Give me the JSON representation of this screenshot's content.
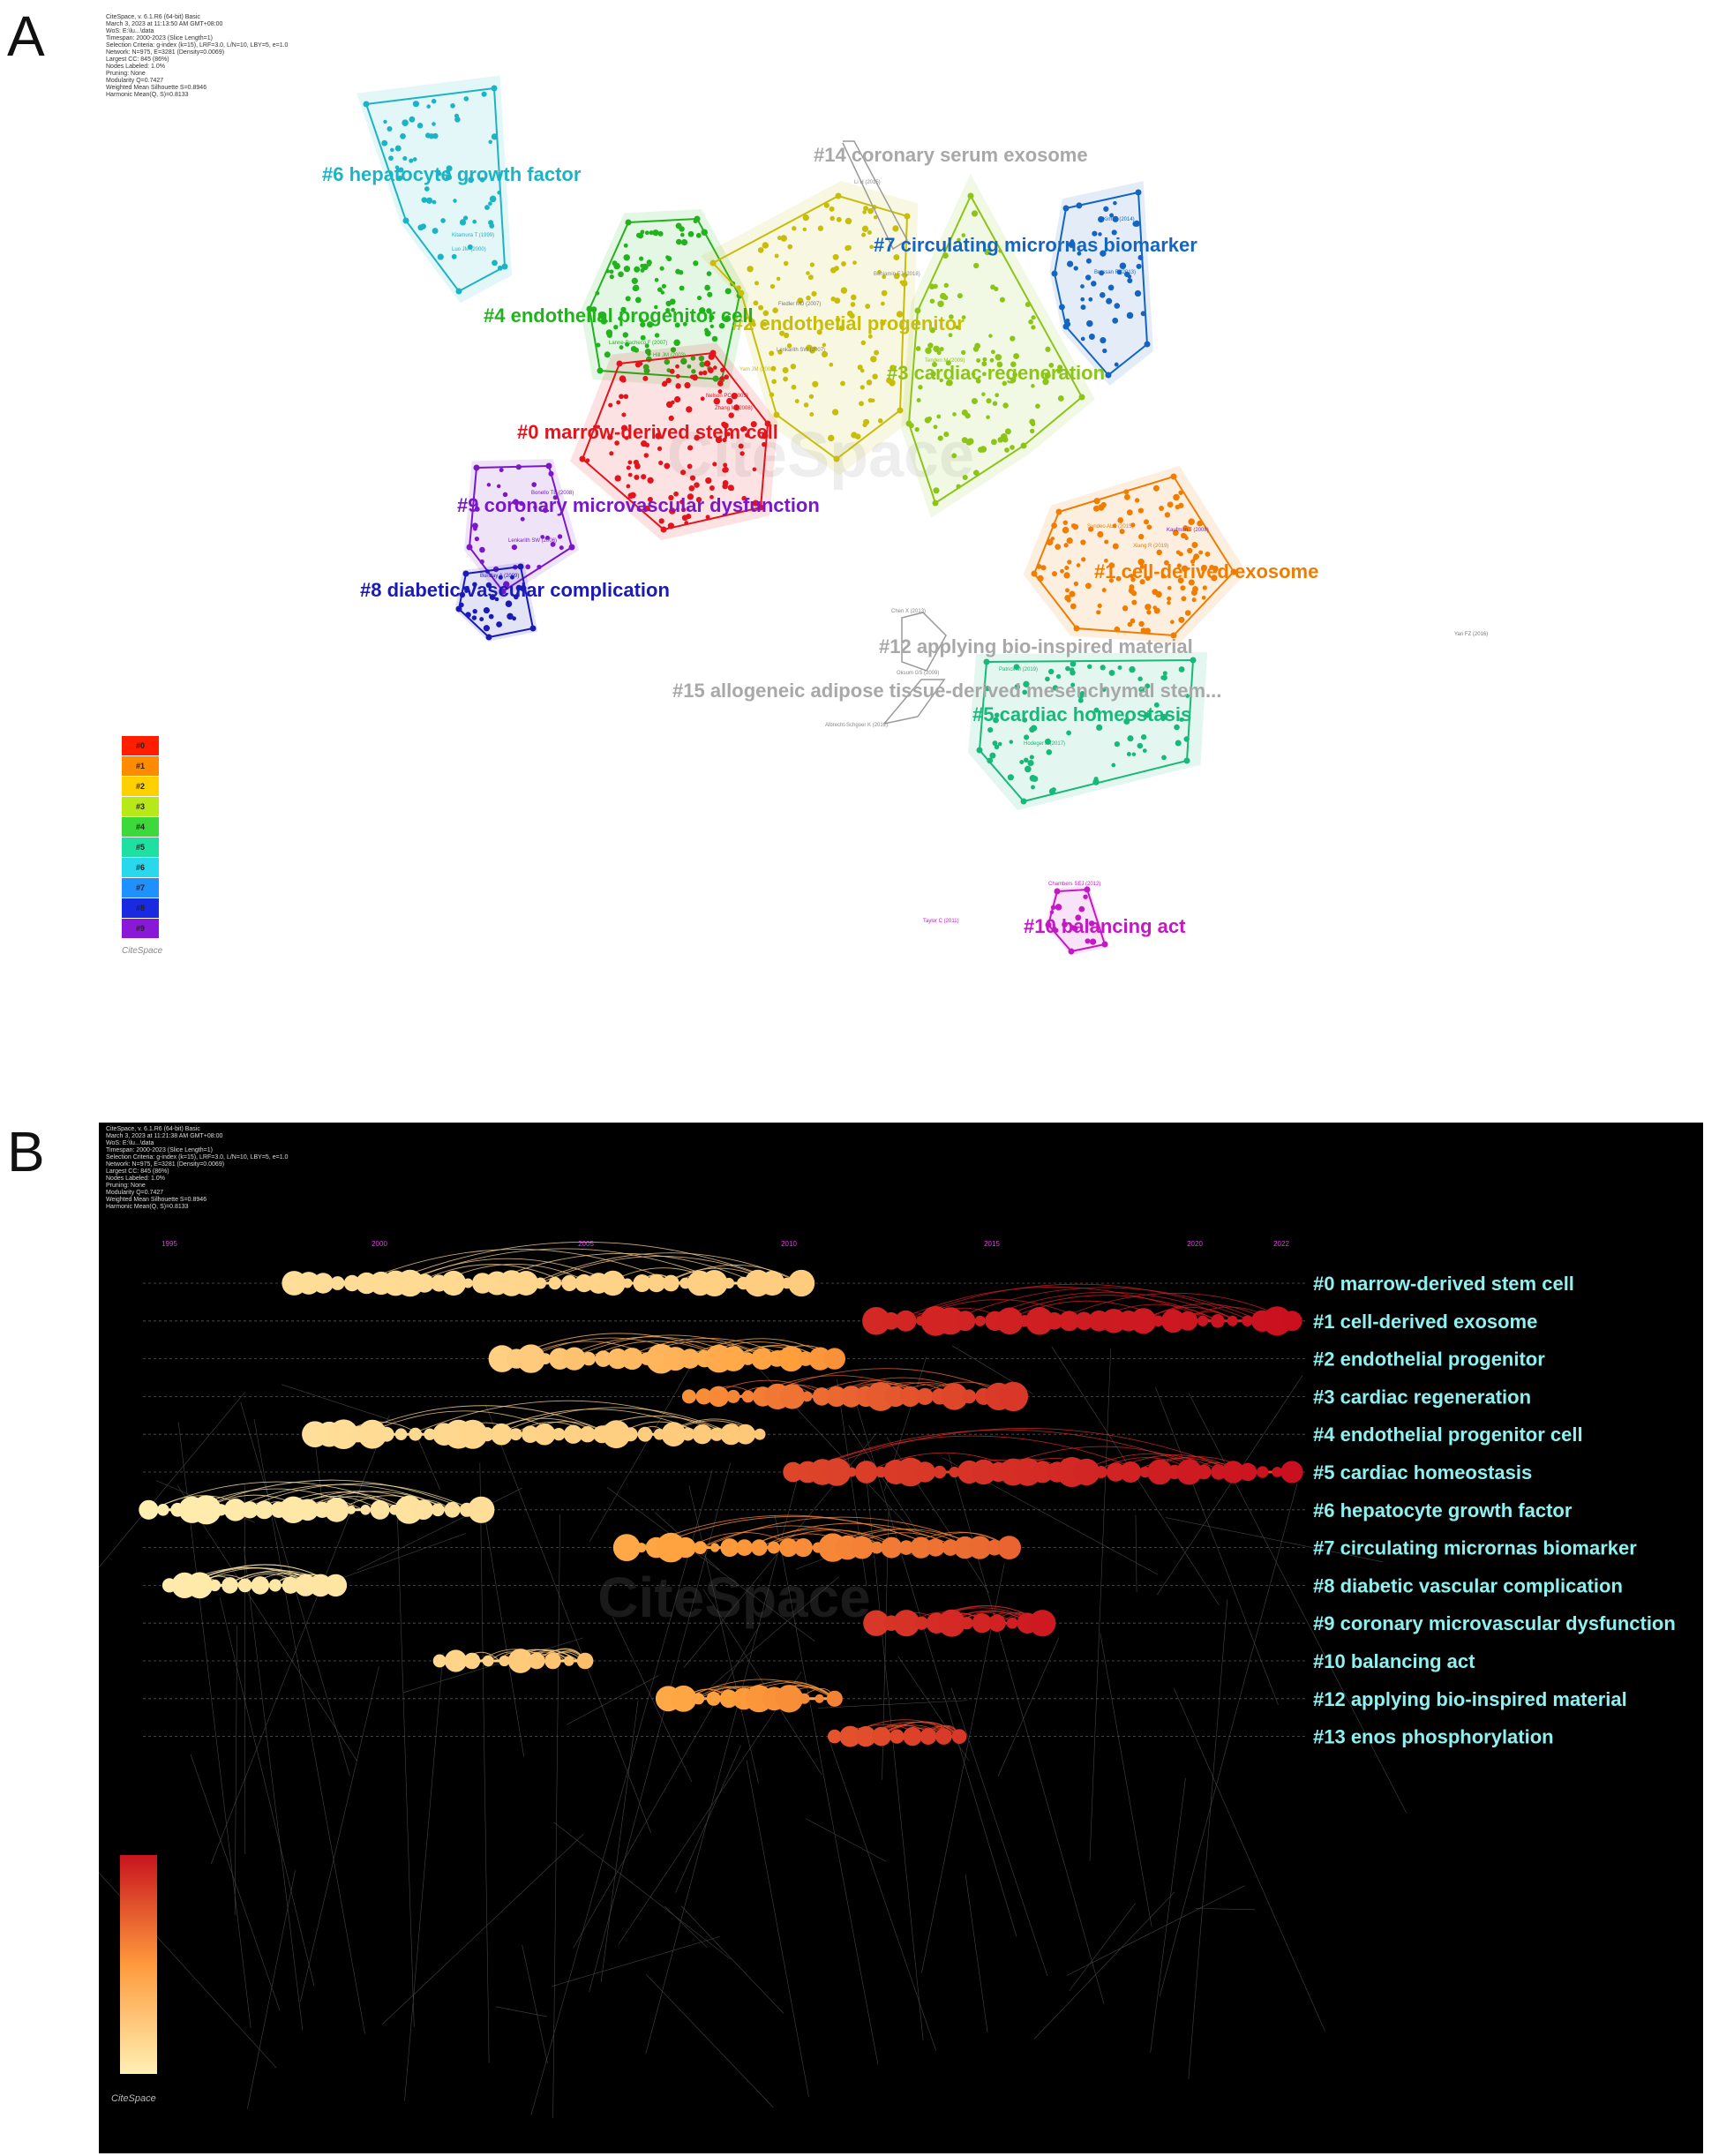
{
  "panels": [
    {
      "letter": "A"
    },
    {
      "letter": "B"
    }
  ],
  "metaA": "CiteSpace, v. 6.1.R6 (64-bit) Basic\nMarch 3, 2023 at 11:13:50 AM GMT+08:00\nWoS: E:\\lu...\\data\nTimespan: 2000-2023 (Slice Length=1)\nSelection Criteria: g-index (k=15), LRF=3.0, L/N=10, LBY=5, e=1.0\nNetwork: N=975, E=3281 (Density=0.0069)\nLargest CC: 845 (86%)\nNodes Labeled: 1.0%\nPruning: None\nModularity Q=0.7427\nWeighted Mean Silhouette S=0.8946\nHarmonic Mean(Q, S)=0.8133",
  "metaB": "CiteSpace, v. 6.1.R6 (64-bit) Basic\nMarch 3, 2023 at 11:21:38 AM GMT+08:00\nWoS: E:\\lu...\\data\nTimespan: 2000-2023 (Slice Length=1)\nSelection Criteria: g-index (k=15), LRF=3.0, L/N=10, LBY=5, e=1.0\nNetwork: N=975, E=3281 (Density=0.0069)\nLargest CC: 845 (86%)\nNodes Labeled: 1.0%\nPruning: None\nModularity Q=0.7427\nWeighted Mean Silhouette S=0.8946\nHarmonic Mean(Q, S)=0.8133",
  "clusters": [
    {
      "id": "#0",
      "label": "#0 marrow-derived stem cell",
      "color": "#e3141b"
    },
    {
      "id": "#1",
      "label": "#1 cell-derived exosome",
      "color": "#f07d00"
    },
    {
      "id": "#2",
      "label": "#2 endothelial progenitor",
      "color": "#c7bd0a"
    },
    {
      "id": "#3",
      "label": "#3 cardiac regeneration",
      "color": "#8cc418"
    },
    {
      "id": "#4",
      "label": "#4 endothelial progenitor cell",
      "color": "#22b21e"
    },
    {
      "id": "#5",
      "label": "#5 cardiac homeostasis",
      "color": "#18b87a"
    },
    {
      "id": "#6",
      "label": "#6 hepatocyte growth factor",
      "color": "#1cb4c4"
    },
    {
      "id": "#7",
      "label": "#7 circulating micrornas biomarker",
      "color": "#1565c0"
    },
    {
      "id": "#8",
      "label": "#8 diabetic vascular complication",
      "color": "#1a1ab8"
    },
    {
      "id": "#9",
      "label": "#9 coronary microvascular dysfunction",
      "color": "#7a18c8"
    },
    {
      "id": "#10",
      "label": "#10 balancing act",
      "color": "#c418c4"
    },
    {
      "id": "#12",
      "label": "#12 applying bio-inspired material",
      "color": "#a8a8a8"
    },
    {
      "id": "#14",
      "label": "#14 coronary serum exosome",
      "color": "#a8a8a8"
    },
    {
      "id": "#15",
      "label": "#15 allogeneic adipose tissue-derived mesenchymal stem...",
      "color": "#a8a8a8"
    }
  ],
  "legendA": [
    "#0",
    "#1",
    "#2",
    "#3",
    "#4",
    "#5",
    "#6",
    "#7",
    "#8",
    "#9"
  ],
  "nodeLabelsA": {
    "a1": "Kitamura T (1999)",
    "a2": "Luo JM (2000)",
    "a3": "Li H (2015)",
    "a4": "Kim JI (2014)",
    "a5": "Bressan R (2013)",
    "a6": "Benjamin EJ (2018)",
    "a7": "Fiedler MD (2007)",
    "a8": "Lanne-Pacheco F (2007)",
    "a9": "Hill JM (2003)",
    "a10": "Lenkarith SW (2007)",
    "a11": "Tenderi M (2009)",
    "a12": "Yam JM (2008)",
    "a13": "Nelson PC (2005)",
    "a14": "Zhang M (2008)",
    "a15": "Bonello TB (2008)",
    "a16": "Lenkarith SW (2006)",
    "a17": "Bunday A (2009)",
    "a18": "Sundeo ALE (2015)",
    "a19": "Kaufman J (2008)",
    "a20": "Xiang R (2019)",
    "a21": "Chen X (2013)",
    "a22": "Oksum GS (2009)",
    "a23": "Albrecht-Schgoer K (2012)",
    "a24": "Patrick M (2019)",
    "a25": "Hodeger A (2017)",
    "a26": "Yan FZ (2016)",
    "a27": "Chambers SEJ (2012)",
    "a28": "Taylor C (2011)"
  },
  "timelineYears": [
    "1995",
    "2000",
    "2005",
    "2010",
    "2015",
    "2020",
    "2022"
  ],
  "lanes": [
    {
      "label": "#0 marrow-derived stem cell",
      "start": 1998.0,
      "end": 2010.2,
      "c0": [
        0.1
      ],
      "c1": [
        0.22
      ]
    },
    {
      "label": "#1 cell-derived exosome",
      "start": 2012.0,
      "end": 2022.0,
      "c0": [
        0.9
      ],
      "c1": [
        0.98
      ]
    },
    {
      "label": "#2 endothelial progenitor",
      "start": 2003.0,
      "end": 2011.0,
      "c0": [
        0.2
      ],
      "c1": [
        0.55
      ]
    },
    {
      "label": "#3 cardiac regeneration",
      "start": 2007.5,
      "end": 2015.3,
      "c0": [
        0.55
      ],
      "c1": [
        0.85
      ]
    },
    {
      "label": "#4 endothelial progenitor cell",
      "start": 1998.5,
      "end": 2009.2,
      "c0": [
        0.1
      ],
      "c1": [
        0.25
      ]
    },
    {
      "label": "#5 cardiac homeostasis",
      "start": 2010.0,
      "end": 2022.0,
      "c0": [
        0.8
      ],
      "c1": [
        0.98
      ]
    },
    {
      "label": "#6 hepatocyte growth factor",
      "start": 1994.5,
      "end": 2002.5,
      "c0": [
        0.0
      ],
      "c1": [
        0.1
      ]
    },
    {
      "label": "#7 circulating micrornas biomarker",
      "start": 2006.0,
      "end": 2015.2,
      "c0": [
        0.45
      ],
      "c1": [
        0.7
      ]
    },
    {
      "label": "#8 diabetic vascular complication",
      "start": 1995.0,
      "end": 1999.0,
      "c0": [
        0.02
      ],
      "c1": [
        0.06
      ]
    },
    {
      "label": "#9 coronary microvascular dysfunction",
      "start": 2012.0,
      "end": 2016.0,
      "c0": [
        0.85
      ],
      "c1": [
        0.95
      ]
    },
    {
      "label": "#10 balancing act",
      "start": 2001.5,
      "end": 2005.0,
      "c0": [
        0.15
      ],
      "c1": [
        0.3
      ]
    },
    {
      "label": "#12 applying bio-inspired material",
      "start": 2007.0,
      "end": 2011.0,
      "c0": [
        0.45
      ],
      "c1": [
        0.6
      ]
    },
    {
      "label": "#13 enos phosphorylation",
      "start": 2011.0,
      "end": 2014.0,
      "c0": [
        0.75
      ],
      "c1": [
        0.85
      ]
    }
  ],
  "brand": "CiteSpace"
}
